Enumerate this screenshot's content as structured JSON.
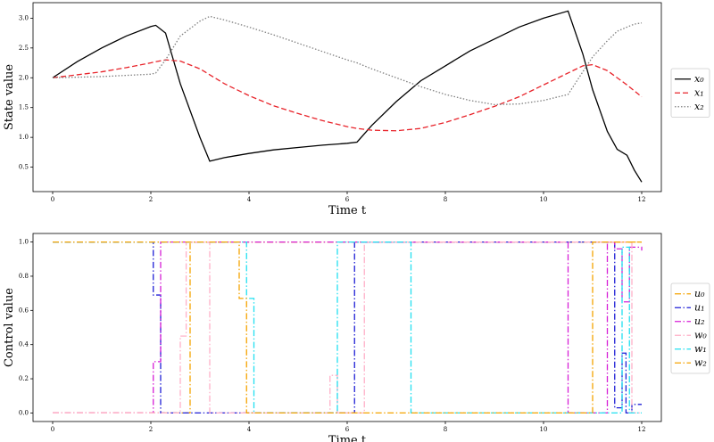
{
  "chart_data": [
    {
      "type": "line",
      "ylabel": "State value",
      "xlabel": "Time t",
      "x": [
        0,
        0.5,
        1,
        1.5,
        2,
        2.1,
        2.3,
        2.6,
        3,
        3.2,
        3.5,
        4,
        4.5,
        5,
        5.5,
        6,
        6.2,
        6.5,
        7,
        7.5,
        8,
        8.5,
        9,
        9.5,
        10,
        10.5,
        10.8,
        11,
        11.3,
        11.5,
        11.7,
        11.85,
        12
      ],
      "series": [
        {
          "name": "x₀",
          "color": "#000000",
          "linestyle": "solid",
          "values": [
            2.0,
            2.27,
            2.5,
            2.7,
            2.86,
            2.88,
            2.75,
            1.9,
            1.0,
            0.6,
            0.66,
            0.73,
            0.79,
            0.83,
            0.87,
            0.9,
            0.92,
            1.2,
            1.6,
            1.95,
            2.2,
            2.45,
            2.65,
            2.85,
            3.0,
            3.12,
            2.4,
            1.8,
            1.1,
            0.8,
            0.7,
            0.45,
            0.25
          ]
        },
        {
          "name": "x₁",
          "color": "#e8232a",
          "linestyle": "dashed",
          "values": [
            2.0,
            2.05,
            2.1,
            2.17,
            2.25,
            2.27,
            2.3,
            2.28,
            2.15,
            2.05,
            1.9,
            1.7,
            1.53,
            1.4,
            1.28,
            1.18,
            1.15,
            1.12,
            1.11,
            1.15,
            1.25,
            1.38,
            1.52,
            1.68,
            1.88,
            2.08,
            2.2,
            2.22,
            2.12,
            2.0,
            1.88,
            1.78,
            1.68
          ]
        },
        {
          "name": "x₂",
          "color": "#808080",
          "linestyle": "dotted",
          "values": [
            2.0,
            2.01,
            2.02,
            2.04,
            2.06,
            2.08,
            2.3,
            2.7,
            2.95,
            3.03,
            2.97,
            2.85,
            2.72,
            2.58,
            2.44,
            2.3,
            2.25,
            2.15,
            2.0,
            1.85,
            1.72,
            1.62,
            1.55,
            1.56,
            1.62,
            1.72,
            2.1,
            2.35,
            2.62,
            2.78,
            2.85,
            2.9,
            2.92
          ]
        }
      ],
      "xlim": [
        -0.4,
        12.4
      ],
      "xticks": [
        0,
        2,
        4,
        6,
        8,
        10,
        12
      ],
      "ylim": [
        0.09,
        3.26
      ],
      "yticks": [
        {
          "value": 0.5,
          "label": "0.5"
        },
        {
          "value": 1.0,
          "label": "1.0"
        },
        {
          "value": 1.5,
          "label": "1.5"
        },
        {
          "value": 2.0,
          "label": "2.0"
        },
        {
          "value": 2.5,
          "label": "2.5"
        },
        {
          "value": 3.0,
          "label": "3.0"
        }
      ],
      "legend": "right"
    },
    {
      "type": "step",
      "ylabel": "Control value",
      "xlabel": "Time t",
      "series": [
        {
          "name": "u₀",
          "color": "#f5a300",
          "linestyle": "dashdot",
          "x": [
            0,
            2.8,
            12
          ],
          "values": [
            0,
            1,
            1
          ]
        },
        {
          "name": "u₁",
          "color": "#1f1fd6",
          "linestyle": "dashdot",
          "x": [
            0,
            2.05,
            2.2,
            6.15,
            11.45,
            11.6,
            11.68,
            11.8,
            12
          ],
          "values": [
            1,
            0.69,
            0,
            1,
            0.03,
            0.35,
            0,
            0.05,
            0.05
          ]
        },
        {
          "name": "u₂",
          "color": "#d61fd6",
          "linestyle": "dashdot",
          "x": [
            0,
            2.05,
            2.2,
            10.5,
            11.3,
            11.45,
            11.6,
            11.75,
            12
          ],
          "values": [
            0,
            0.3,
            1,
            0,
            1,
            0.96,
            0.65,
            0.97,
            0.95
          ]
        },
        {
          "name": "w₀",
          "color": "#ffb0c8",
          "linestyle": "dashdot",
          "x": [
            0,
            2.6,
            2.72,
            3.2,
            5.65,
            5.8,
            6.35,
            10.9,
            11.8,
            12
          ],
          "values": [
            0,
            0.45,
            1,
            0,
            0.22,
            0,
            1,
            1,
            0,
            0
          ]
        },
        {
          "name": "w₁",
          "color": "#22e0f0",
          "linestyle": "dashdot",
          "x": [
            0,
            3.95,
            4.1,
            5.8,
            7.3,
            11.6,
            11.75,
            12
          ],
          "values": [
            1,
            0.67,
            0,
            1,
            0,
            0.97,
            0,
            0
          ]
        },
        {
          "name": "w₂",
          "color": "#f5a300",
          "linestyle": "dashdot",
          "x": [
            0,
            3.8,
            3.95,
            11.0,
            12
          ],
          "values": [
            1,
            0.67,
            0,
            1,
            1
          ]
        }
      ],
      "xlim": [
        -0.4,
        12.4
      ],
      "xticks": [
        0,
        2,
        4,
        6,
        8,
        10,
        12
      ],
      "ylim": [
        -0.05,
        1.05
      ],
      "yticks": [
        {
          "value": 0,
          "label": "0.0"
        },
        {
          "value": 0.2,
          "label": "0.2"
        },
        {
          "value": 0.4,
          "label": "0.4"
        },
        {
          "value": 0.6,
          "label": "0.6"
        },
        {
          "value": 0.8,
          "label": "0.8"
        },
        {
          "value": 1.0,
          "label": "1.0"
        }
      ],
      "legend": "right"
    }
  ]
}
